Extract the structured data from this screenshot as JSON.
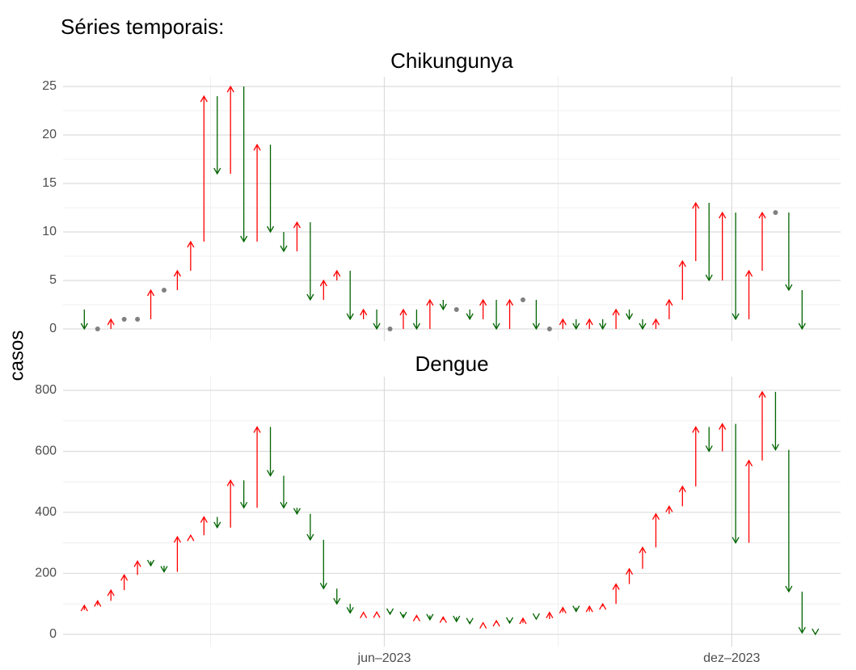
{
  "chart_data": {
    "type": "arrow",
    "title": "Séries temporais:",
    "y_label": "casos",
    "up_color": "#ff0000",
    "down_color": "#006400",
    "same_color": "#808080",
    "grid": true,
    "xlim": [
      -1.6,
      56.9
    ],
    "xticks": [
      {
        "value": 22.57,
        "label": "jun–2023"
      },
      {
        "value": 48.71,
        "label": "dez–2023"
      }
    ],
    "panels": [
      {
        "title": "Chikungunya",
        "ylim": [
          -1.25,
          26
        ],
        "yticks": [
          0,
          5,
          10,
          15,
          20,
          25
        ],
        "values": [
          2,
          0,
          0,
          1,
          1,
          1,
          4,
          4,
          6,
          9,
          24,
          16,
          25,
          9,
          19,
          10,
          8,
          11,
          3,
          5,
          6,
          1,
          2,
          0,
          0,
          2,
          0,
          3,
          2,
          2,
          1,
          3,
          0,
          3,
          3,
          0,
          0,
          1,
          0,
          1,
          0,
          2,
          1,
          0,
          1,
          3,
          7,
          13,
          5,
          12,
          1,
          6,
          12,
          12,
          4,
          0,
          null
        ]
      },
      {
        "title": "Dengue",
        "ylim": [
          -40,
          845
        ],
        "yticks": [
          0,
          200,
          400,
          600,
          800
        ],
        "values": [
          80,
          95,
          110,
          145,
          195,
          240,
          225,
          205,
          320,
          325,
          385,
          350,
          505,
          415,
          680,
          520,
          415,
          395,
          310,
          150,
          100,
          70,
          72,
          73,
          66,
          55,
          62,
          48,
          57,
          42,
          35,
          38,
          45,
          37,
          53,
          50,
          72,
          88,
          75,
          92,
          100,
          165,
          215,
          285,
          395,
          420,
          485,
          680,
          600,
          690,
          300,
          570,
          795,
          605,
          140,
          5,
          0
        ]
      }
    ]
  }
}
